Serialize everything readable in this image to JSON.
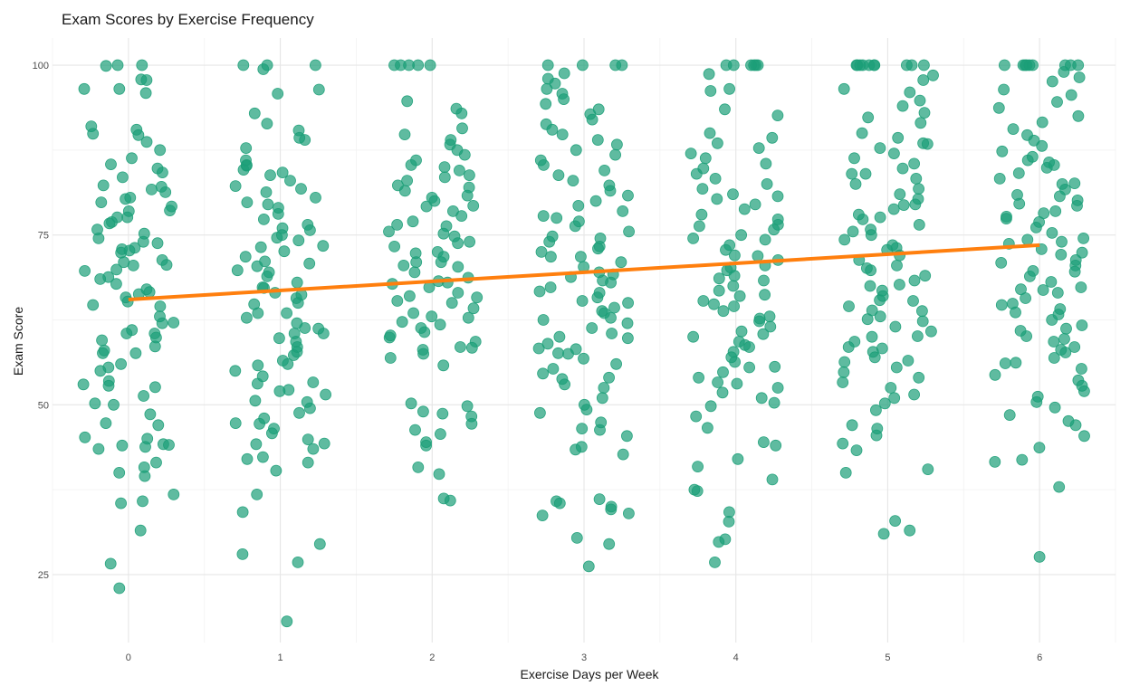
{
  "chart_data": {
    "type": "scatter",
    "title": "Exam Scores by Exercise Frequency",
    "xlabel": "Exercise Days per Week",
    "ylabel": "Exam Score",
    "xlim": [
      -0.5,
      6.5
    ],
    "ylim": [
      15,
      104
    ],
    "x_ticks": [
      0,
      1,
      2,
      3,
      4,
      5,
      6
    ],
    "y_ticks": [
      25,
      50,
      75,
      100
    ],
    "grid": true,
    "legend": "none",
    "point_color": "#1b9e77",
    "trend_color": "#ff7f0e",
    "jitter_width": 0.3,
    "trend_line": {
      "x": [
        0,
        6
      ],
      "y": [
        65.5,
        73.5
      ]
    },
    "groups": [
      {
        "x": 0,
        "y": [
          35.8,
          26.6,
          31.5,
          36.8,
          39.5,
          40.8,
          43.5,
          44.2,
          45.0,
          47.0,
          48.6,
          50.0,
          52.6,
          55.0,
          57.6,
          58.0,
          59.5,
          60.5,
          62.0,
          63.0,
          64.7,
          65.8,
          66.6,
          67.8,
          68.8,
          69.9,
          70.6,
          71.3,
          72.4,
          72.9,
          73.8,
          74.5,
          75.8,
          76.9,
          77.6,
          78.5,
          79.2,
          80.3,
          81.7,
          82.3,
          83.5,
          84.2,
          84.8,
          85.4,
          86.3,
          87.5,
          88.7,
          89.9,
          90.5,
          91.0,
          95.9,
          96.5,
          97.8,
          99.9,
          100.0,
          23.0,
          35.5,
          44.1,
          44.0,
          45.2,
          47.3,
          50.2,
          51.3,
          53.0,
          53.5,
          55.5,
          56.0,
          57.6,
          59.9,
          60.5,
          61.0,
          64.5,
          66.3,
          67.0,
          69.7,
          70.5,
          71.0,
          72.7,
          74.0,
          76.7,
          77.6,
          78.6,
          79.8,
          80.5,
          81.3,
          89.7,
          96.5,
          97.9,
          100.0,
          40.0,
          41.5,
          43.8,
          52.8,
          58.6,
          62.1,
          65.2,
          68.5,
          73.1,
          75.2,
          82.1
        ]
      },
      {
        "x": 1,
        "y": [
          18.1,
          26.8,
          28.0,
          29.5,
          34.2,
          36.8,
          40.3,
          41.5,
          42.3,
          43.5,
          44.2,
          44.9,
          45.8,
          46.5,
          47.3,
          48.0,
          48.8,
          49.5,
          50.4,
          51.5,
          52.2,
          53.3,
          54.2,
          55.0,
          55.8,
          56.5,
          57.3,
          58.5,
          59.3,
          59.8,
          60.5,
          61.2,
          62.0,
          62.8,
          63.5,
          64.8,
          65.7,
          66.5,
          67.2,
          68.0,
          68.9,
          69.5,
          70.4,
          71.1,
          71.8,
          72.6,
          73.4,
          74.2,
          75.0,
          75.7,
          76.5,
          77.3,
          78.1,
          79.0,
          79.8,
          80.5,
          81.3,
          82.2,
          83.0,
          83.8,
          84.6,
          85.3,
          86.0,
          87.8,
          89.0,
          89.3,
          90.4,
          91.4,
          92.9,
          95.8,
          96.4,
          99.4,
          100.0,
          100.0,
          100.0,
          44.3,
          50.6,
          53.1,
          56.0,
          60.5,
          63.5,
          66.2,
          67.3,
          70.8,
          73.2,
          76.0,
          81.8,
          84.2,
          65.0,
          57.8,
          47.2,
          42.0,
          61.3,
          69.8,
          85.2,
          52.0,
          74.6,
          79.5
        ]
      },
      {
        "x": 2,
        "y": [
          35.9,
          36.2,
          39.8,
          40.8,
          44.0,
          44.5,
          45.7,
          46.3,
          47.2,
          48.3,
          48.7,
          49.0,
          49.8,
          50.2,
          56.9,
          57.5,
          58.1,
          58.4,
          59.3,
          59.9,
          60.7,
          61.3,
          62.2,
          62.8,
          63.5,
          64.2,
          65.0,
          65.8,
          66.5,
          67.3,
          68.0,
          68.7,
          69.5,
          70.3,
          71.0,
          71.8,
          72.5,
          73.3,
          74.0,
          74.8,
          75.5,
          76.3,
          77.0,
          77.8,
          78.5,
          79.3,
          80.0,
          80.8,
          81.5,
          82.3,
          83.0,
          83.8,
          84.5,
          85.3,
          86.0,
          86.8,
          87.5,
          88.3,
          89.0,
          89.8,
          90.7,
          92.9,
          93.6,
          94.7,
          100.0,
          100.0,
          100.0,
          100.0,
          100.0,
          63.0,
          67.8,
          71.0,
          75.2,
          82.0,
          70.5,
          60.2,
          66.0,
          73.8,
          80.5,
          85.0,
          68.2,
          76.5,
          58.5,
          79.2,
          83.5,
          55.8,
          72.3,
          65.3,
          61.8
        ]
      },
      {
        "x": 3,
        "y": [
          26.2,
          29.5,
          30.4,
          33.7,
          34.0,
          34.6,
          35.0,
          35.5,
          35.8,
          36.1,
          42.7,
          43.4,
          43.8,
          45.4,
          46.3,
          46.5,
          47.4,
          49.3,
          50.0,
          51.0,
          52.5,
          53.0,
          53.8,
          54.6,
          55.3,
          56.0,
          56.8,
          57.5,
          58.3,
          59.0,
          59.8,
          60.5,
          61.3,
          62.0,
          62.8,
          63.5,
          64.3,
          65.0,
          65.8,
          66.5,
          67.3,
          68.0,
          68.8,
          69.5,
          70.3,
          71.0,
          71.8,
          72.5,
          73.3,
          74.0,
          74.8,
          75.5,
          76.3,
          77.0,
          77.8,
          78.5,
          79.3,
          80.0,
          80.8,
          81.5,
          82.3,
          83.0,
          83.8,
          84.5,
          85.3,
          86.0,
          86.8,
          87.5,
          88.3,
          89.0,
          89.8,
          90.5,
          91.3,
          92.0,
          92.8,
          93.5,
          94.3,
          95.0,
          95.8,
          96.5,
          97.3,
          98.0,
          98.8,
          100.0,
          100.0,
          100.0,
          100.0,
          62.5,
          68.3,
          74.5,
          58.2,
          66.7,
          71.8,
          77.5,
          63.8,
          69.2,
          73.0,
          57.6,
          65.3,
          60.0,
          54.0,
          48.8
        ]
      },
      {
        "x": 4,
        "y": [
          26.8,
          29.8,
          30.2,
          32.8,
          34.2,
          37.3,
          37.5,
          39.0,
          40.9,
          42.0,
          44.0,
          44.5,
          46.6,
          48.3,
          49.8,
          50.3,
          51.0,
          51.8,
          52.5,
          53.3,
          54.0,
          54.8,
          55.5,
          56.3,
          57.0,
          57.8,
          58.5,
          59.3,
          60.0,
          60.8,
          61.5,
          62.3,
          63.0,
          63.8,
          64.5,
          65.3,
          66.0,
          66.8,
          67.5,
          68.3,
          69.0,
          69.8,
          70.5,
          71.3,
          72.0,
          72.8,
          73.5,
          74.3,
          75.0,
          75.8,
          76.5,
          77.3,
          78.0,
          78.8,
          79.5,
          80.3,
          81.0,
          81.8,
          82.5,
          83.3,
          84.0,
          84.8,
          85.5,
          86.3,
          87.0,
          87.8,
          88.5,
          89.3,
          90.0,
          92.6,
          93.5,
          96.2,
          96.5,
          98.7,
          100.0,
          100.0,
          100.0,
          100.0,
          100.0,
          100.0,
          55.6,
          62.7,
          68.6,
          71.9,
          76.3,
          58.8,
          64.8,
          70.2,
          74.5,
          80.7,
          53.1,
          60.4,
          66.2
        ]
      },
      {
        "x": 5,
        "y": [
          31.0,
          31.5,
          32.9,
          40.0,
          40.5,
          43.3,
          44.3,
          45.5,
          46.5,
          47.0,
          49.2,
          50.2,
          51.0,
          51.5,
          52.5,
          53.3,
          54.0,
          54.8,
          55.5,
          56.3,
          57.0,
          57.8,
          58.5,
          59.3,
          60.0,
          60.8,
          61.5,
          62.3,
          63.0,
          63.8,
          64.5,
          65.3,
          66.0,
          66.8,
          67.5,
          68.3,
          69.0,
          69.8,
          70.5,
          71.3,
          72.0,
          72.8,
          73.5,
          74.3,
          75.0,
          75.8,
          76.5,
          77.3,
          78.0,
          78.8,
          79.5,
          80.3,
          81.0,
          81.8,
          82.5,
          83.3,
          84.0,
          84.8,
          85.5,
          86.3,
          87.0,
          87.8,
          88.5,
          89.3,
          90.0,
          91.5,
          92.3,
          93.0,
          94.0,
          94.8,
          96.0,
          96.5,
          97.8,
          98.5,
          100.0,
          100.0,
          100.0,
          100.0,
          100.0,
          100.0,
          100.0,
          100.0,
          100.0,
          100.0,
          62.6,
          67.7,
          73.1,
          77.6,
          58.3,
          65.4,
          70.1,
          84.0,
          88.4,
          56.5,
          63.9,
          75.5,
          79.4,
          60.1
        ]
      },
      {
        "x": 6,
        "y": [
          27.6,
          37.9,
          41.6,
          41.9,
          43.7,
          45.4,
          47.0,
          47.6,
          48.5,
          49.6,
          50.4,
          51.2,
          52.0,
          52.8,
          53.6,
          54.4,
          55.3,
          56.1,
          56.9,
          57.7,
          58.5,
          59.3,
          60.1,
          60.9,
          61.7,
          62.5,
          63.3,
          64.1,
          64.9,
          65.7,
          66.5,
          67.3,
          68.1,
          68.9,
          69.7,
          70.5,
          71.3,
          72.1,
          72.9,
          73.7,
          74.5,
          75.3,
          76.1,
          76.9,
          77.7,
          78.5,
          79.3,
          80.1,
          80.9,
          81.7,
          82.5,
          83.3,
          84.1,
          84.9,
          85.7,
          86.5,
          87.3,
          88.1,
          88.9,
          89.7,
          90.6,
          91.6,
          92.5,
          93.7,
          94.6,
          95.6,
          96.4,
          97.6,
          98.2,
          99.0,
          100.0,
          100.0,
          100.0,
          100.0,
          100.0,
          100.0,
          100.0,
          100.0,
          100.0,
          63.6,
          69.6,
          74.0,
          78.2,
          59.7,
          66.9,
          72.4,
          82.6,
          86.0,
          56.2,
          64.7,
          70.9,
          77.4,
          61.2,
          67.0,
          80.7,
          74.3,
          85.3,
          79.6,
          58.1
        ]
      }
    ]
  }
}
